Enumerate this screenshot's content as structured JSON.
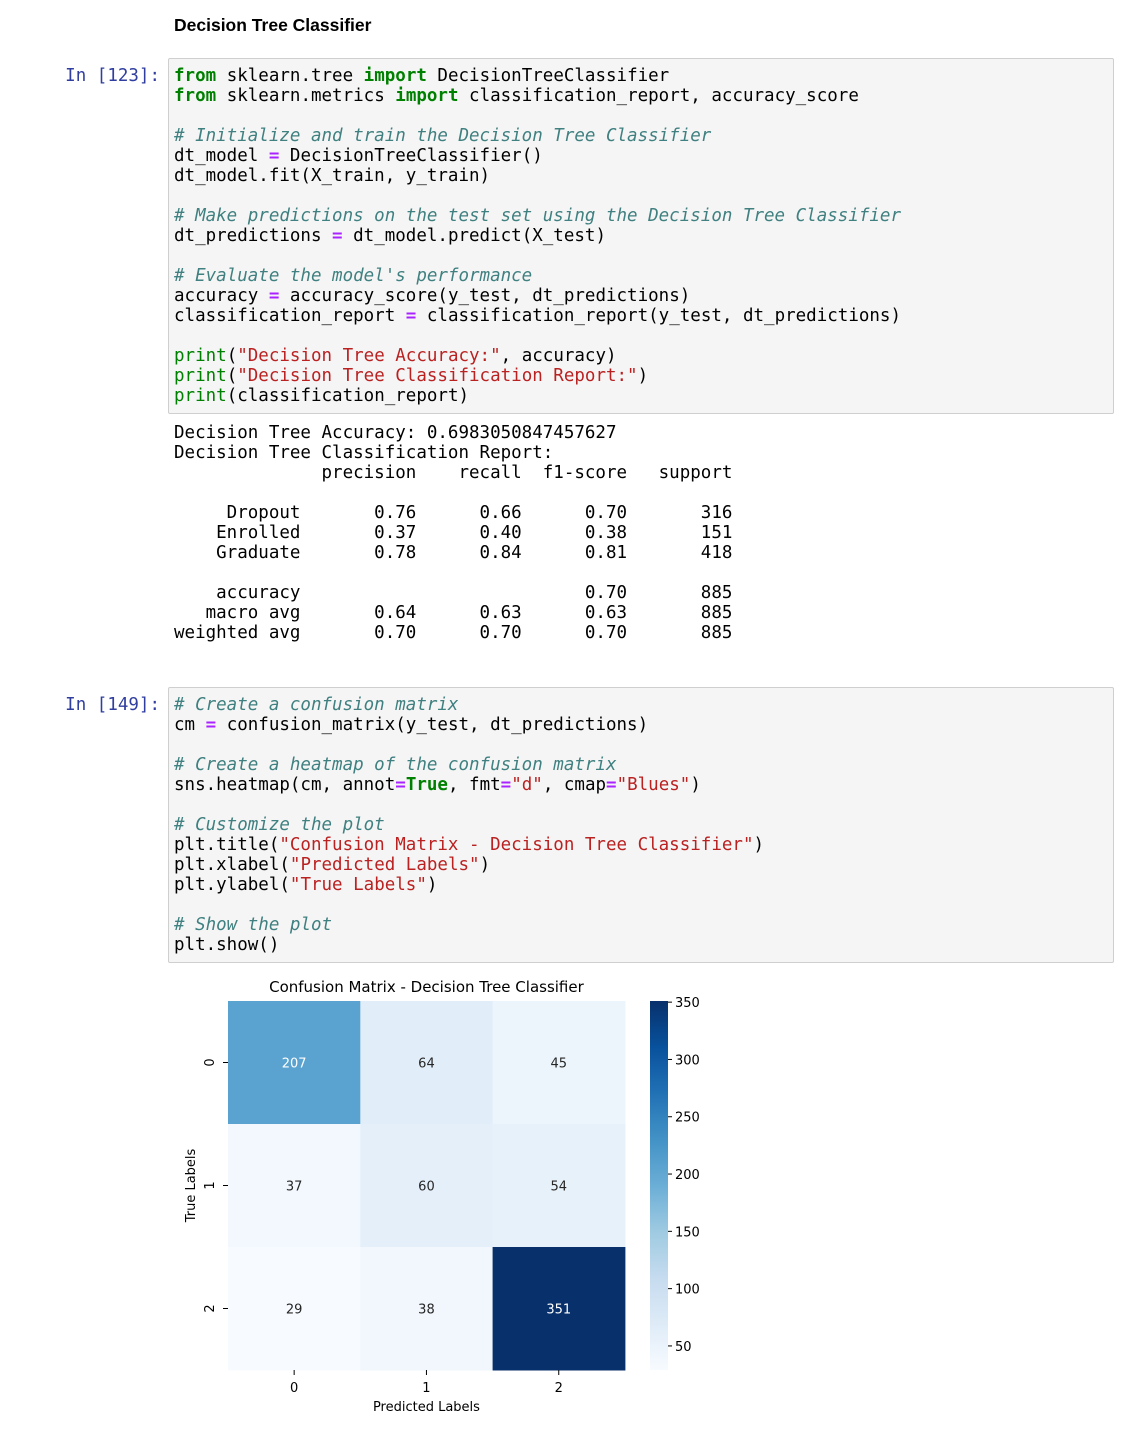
{
  "notebook": {
    "heading": "Decision Tree Classifier",
    "cells": [
      {
        "prompt": "In [123]:",
        "lines": [
          [
            [
              "kw",
              "from"
            ],
            [
              "t",
              " sklearn.tree "
            ],
            [
              "kw",
              "import"
            ],
            [
              "t",
              " DecisionTreeClassifier"
            ]
          ],
          [
            [
              "kw",
              "from"
            ],
            [
              "t",
              " sklearn.metrics "
            ],
            [
              "kw",
              "import"
            ],
            [
              "t",
              " classification_report, accuracy_score"
            ]
          ],
          [],
          [
            [
              "cm",
              "# Initialize and train the Decision Tree Classifier"
            ]
          ],
          [
            [
              "t",
              "dt_model "
            ],
            [
              "op",
              "="
            ],
            [
              "t",
              " DecisionTreeClassifier()"
            ]
          ],
          [
            [
              "t",
              "dt_model.fit(X_train, y_train)"
            ]
          ],
          [],
          [
            [
              "cm",
              "# Make predictions on the test set using the Decision Tree Classifier"
            ]
          ],
          [
            [
              "t",
              "dt_predictions "
            ],
            [
              "op",
              "="
            ],
            [
              "t",
              " dt_model.predict(X_test)"
            ]
          ],
          [],
          [
            [
              "cm",
              "# Evaluate the model's performance"
            ]
          ],
          [
            [
              "t",
              "accuracy "
            ],
            [
              "op",
              "="
            ],
            [
              "t",
              " accuracy_score(y_test, dt_predictions)"
            ]
          ],
          [
            [
              "t",
              "classification_report "
            ],
            [
              "op",
              "="
            ],
            [
              "t",
              " classification_report(y_test, dt_predictions)"
            ]
          ],
          [],
          [
            [
              "bi",
              "print"
            ],
            [
              "t",
              "("
            ],
            [
              "str",
              "\"Decision Tree Accuracy:\""
            ],
            [
              "t",
              ", accuracy)"
            ]
          ],
          [
            [
              "bi",
              "print"
            ],
            [
              "t",
              "("
            ],
            [
              "str",
              "\"Decision Tree Classification Report:\""
            ],
            [
              "t",
              ")"
            ]
          ],
          [
            [
              "bi",
              "print"
            ],
            [
              "t",
              "(classification_report)"
            ]
          ]
        ]
      },
      {
        "prompt": "In [149]:",
        "lines": [
          [
            [
              "cm",
              "# Create a confusion matrix"
            ]
          ],
          [
            [
              "t",
              "cm "
            ],
            [
              "op",
              "="
            ],
            [
              "t",
              " confusion_matrix(y_test, dt_predictions)"
            ]
          ],
          [],
          [
            [
              "cm",
              "# Create a heatmap of the confusion matrix"
            ]
          ],
          [
            [
              "t",
              "sns.heatmap(cm, annot"
            ],
            [
              "op",
              "="
            ],
            [
              "kw",
              "True"
            ],
            [
              "t",
              ", fmt"
            ],
            [
              "op",
              "="
            ],
            [
              "str",
              "\"d\""
            ],
            [
              "t",
              ", cmap"
            ],
            [
              "op",
              "="
            ],
            [
              "str",
              "\"Blues\""
            ],
            [
              "t",
              ")"
            ]
          ],
          [],
          [
            [
              "cm",
              "# Customize the plot"
            ]
          ],
          [
            [
              "t",
              "plt.title("
            ],
            [
              "str",
              "\"Confusion Matrix - Decision Tree Classifier\""
            ],
            [
              "t",
              ")"
            ]
          ],
          [
            [
              "t",
              "plt.xlabel("
            ],
            [
              "str",
              "\"Predicted Labels\""
            ],
            [
              "t",
              ")"
            ]
          ],
          [
            [
              "t",
              "plt.ylabel("
            ],
            [
              "str",
              "\"True Labels\""
            ],
            [
              "t",
              ")"
            ]
          ],
          [],
          [
            [
              "cm",
              "# Show the plot"
            ]
          ],
          [
            [
              "t",
              "plt.show()"
            ]
          ]
        ]
      }
    ],
    "output_lines": [
      "Decision Tree Accuracy: 0.6983050847457627",
      "Decision Tree Classification Report:",
      "              precision    recall  f1-score   support",
      "",
      "     Dropout       0.76      0.66      0.70       316",
      "    Enrolled       0.37      0.40      0.38       151",
      "    Graduate       0.78      0.84      0.81       418",
      "",
      "    accuracy                           0.70       885",
      "   macro avg       0.64      0.63      0.63       885",
      "weighted avg       0.70      0.70      0.70       885"
    ],
    "syntax_colors": {
      "keyword": "#008000",
      "operator": "#aa22ff",
      "string": "#ba2121",
      "comment": "#408080",
      "prompt": "#303f9f"
    }
  },
  "chart_data": {
    "type": "heatmap",
    "title": "Confusion Matrix - Decision Tree Classifier",
    "xlabel": "Predicted Labels",
    "ylabel": "True Labels",
    "x_categories": [
      "0",
      "1",
      "2"
    ],
    "y_categories": [
      "0",
      "1",
      "2"
    ],
    "values": [
      [
        207,
        64,
        45
      ],
      [
        37,
        60,
        54
      ],
      [
        29,
        38,
        351
      ]
    ],
    "colormap": "Blues",
    "vmin": 29,
    "vmax": 351,
    "colorbar_ticks": [
      50,
      100,
      150,
      200,
      250,
      300,
      350
    ]
  }
}
